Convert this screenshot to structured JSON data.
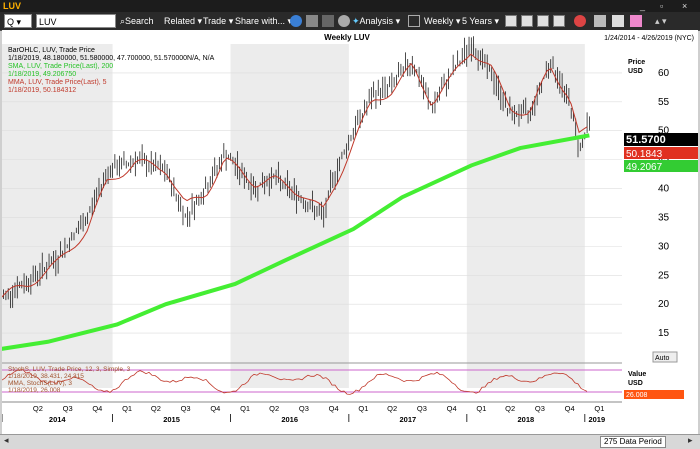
{
  "window": {
    "title": "LUV",
    "min": "_",
    "max": "▫",
    "close": "×"
  },
  "toolbar": {
    "security_type": "Q",
    "symbol": "LUV",
    "search_label": "Search",
    "related_label": "Related",
    "trade_label": "Trade",
    "share_label": "Share with...",
    "analysis_label": "Analysis",
    "interval_label": "Weekly",
    "range_label": "5 Years"
  },
  "chart": {
    "title": "Weekly LUV",
    "date_range": "1/24/2014 - 4/26/2019 (NYC)",
    "price_axis_label": "Price\nUSD",
    "info_lines": [
      {
        "text": "BarOHLC, LUV, Trade Price",
        "color": "#000000"
      },
      {
        "text": "1/18/2019, 48.180000, 51.580000, 47.700000, 51.570000N/A, N/A",
        "color": "#000000"
      },
      {
        "text": "SMA, LUV, Trade Price(Last), 200",
        "color": "#27c227"
      },
      {
        "text": "1/18/2019, 49.206750",
        "color": "#27c227"
      },
      {
        "text": "MMA, LUV, Trade Price(Last), 5",
        "color": "#c0392b"
      },
      {
        "text": "1/18/2019, 50.184312",
        "color": "#c0392b"
      }
    ],
    "price_tag_last": "51.5700",
    "price_tag_mma": "50.1843",
    "price_tag_sma": "49.2067",
    "auto_label": "Auto",
    "stoch": {
      "info_lines": [
        {
          "text": "StochS, LUV, Trade Price, 12, 3, Simple, 3",
          "color": "#a0522d"
        },
        {
          "text": "1/18/2019, 38.431, 24.315",
          "color": "#a0522d"
        },
        {
          "text": "MMA, StochS(LUV), 3",
          "color": "#a0522d"
        },
        {
          "text": "1/18/2019, 26.008",
          "color": "#a0522d"
        }
      ],
      "axis_label": "Value\nUSD",
      "value_tag": "26.008"
    },
    "quarters": [
      "Q2",
      "Q3",
      "Q4",
      "Q1",
      "Q2",
      "Q3",
      "Q4",
      "Q1",
      "Q2",
      "Q3",
      "Q4",
      "Q1",
      "Q2",
      "Q3",
      "Q4",
      "Q1",
      "Q2",
      "Q3",
      "Q4",
      "Q1",
      "Q2"
    ],
    "years": [
      "2014",
      "2015",
      "2016",
      "2017",
      "2018",
      "2019"
    ],
    "status_period": "275 Data Period"
  },
  "chart_data": {
    "type": "line",
    "title": "Weekly LUV",
    "x_range": [
      "2014-01-24",
      "2019-04-26"
    ],
    "ylim": [
      10,
      65
    ],
    "y_ticks": [
      15,
      20,
      25,
      30,
      35,
      40,
      45,
      50,
      55,
      60
    ],
    "series": [
      {
        "name": "BarOHLC, LUV, Trade Price",
        "x": [
          "2014-01",
          "2014-04",
          "2014-07",
          "2014-10",
          "2014-12",
          "2015-03",
          "2015-06",
          "2015-08",
          "2015-10",
          "2015-12",
          "2016-03",
          "2016-05",
          "2016-08",
          "2016-10",
          "2016-11",
          "2017-01",
          "2017-03",
          "2017-05",
          "2017-07",
          "2017-09",
          "2017-11",
          "2018-01",
          "2018-03",
          "2018-05",
          "2018-07",
          "2018-09",
          "2018-11",
          "2018-12",
          "2019-01"
        ],
        "values": [
          21,
          24,
          28,
          35,
          43,
          45,
          43,
          35,
          40,
          46,
          40,
          42,
          38,
          35,
          42,
          50,
          56,
          58,
          62,
          54,
          60,
          65,
          60,
          53,
          53,
          62,
          55,
          47,
          51.57
        ]
      },
      {
        "name": "SMA, LUV, Trade Price(Last), 200",
        "x": [
          "2014-01",
          "2014-06",
          "2015-01",
          "2015-06",
          "2016-01",
          "2016-06",
          "2017-01",
          "2017-06",
          "2018-01",
          "2018-06",
          "2019-01"
        ],
        "values": [
          12.2,
          13.5,
          16.5,
          20,
          23.5,
          27.5,
          33,
          38.5,
          44,
          47,
          49.2
        ]
      },
      {
        "name": "MMA, LUV, Trade Price(Last), 5",
        "x": [
          "2014-01",
          "2014-04",
          "2014-07",
          "2014-10",
          "2014-12",
          "2015-03",
          "2015-06",
          "2015-08",
          "2015-10",
          "2015-12",
          "2016-03",
          "2016-05",
          "2016-08",
          "2016-10",
          "2016-11",
          "2017-01",
          "2017-03",
          "2017-05",
          "2017-07",
          "2017-09",
          "2017-11",
          "2018-01",
          "2018-03",
          "2018-05",
          "2018-07",
          "2018-09",
          "2018-11",
          "2018-12",
          "2019-01"
        ],
        "values": [
          21,
          23.5,
          27,
          33,
          41,
          44.5,
          43.5,
          37,
          39,
          45,
          41,
          41.5,
          39,
          36,
          40,
          48,
          55,
          57,
          61,
          55,
          59,
          64,
          61,
          54,
          53,
          61,
          56,
          49,
          50.18
        ]
      }
    ],
    "stochastic": {
      "ylim": [
        0,
        100
      ],
      "last_values": [
        38.431,
        24.315
      ],
      "mma_last": 26.008
    }
  }
}
